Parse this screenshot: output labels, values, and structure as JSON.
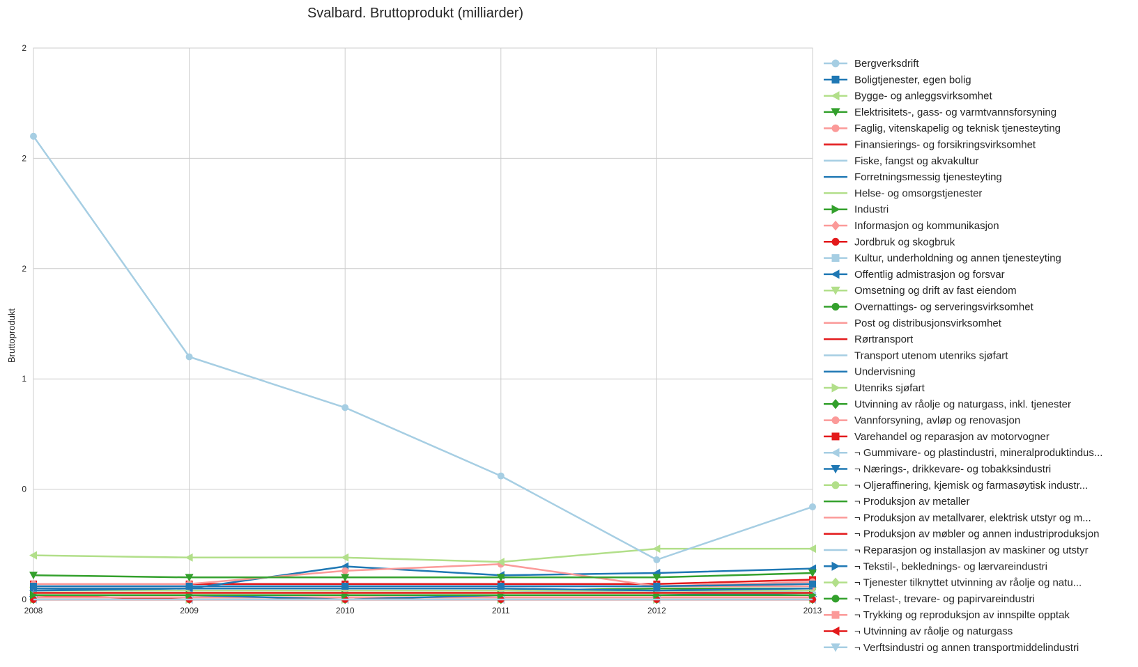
{
  "chart_data": {
    "type": "line",
    "title": "Svalbard. Bruttoprodukt (milliarder)",
    "xlabel": "",
    "ylabel": "Bruttoprodukt",
    "x": [
      "2008",
      "2009",
      "2010",
      "2011",
      "2012",
      "2013"
    ],
    "y_tick_labels": [
      "0",
      "0",
      "1",
      "2",
      "2",
      "2"
    ],
    "ylim": [
      0,
      2.5
    ],
    "grid": true,
    "legend_position": "right",
    "series": [
      {
        "name": "Bergverksdrift",
        "color": "#a6cee3",
        "marker": "circle",
        "values": [
          2.1,
          1.1,
          0.87,
          0.56,
          0.18,
          0.42
        ]
      },
      {
        "name": "Boligtjenester, egen bolig",
        "color": "#1f78b4",
        "marker": "square",
        "values": [
          0.06,
          0.06,
          0.06,
          0.06,
          0.06,
          0.07
        ]
      },
      {
        "name": "Bygge- og anleggsvirksomhet",
        "color": "#b2df8a",
        "marker": "triangle-left",
        "values": [
          0.2,
          0.19,
          0.19,
          0.17,
          0.23,
          0.23
        ]
      },
      {
        "name": "Elektrisitets-, gass- og varmtvannsforsyning",
        "color": "#33a02c",
        "marker": "triangle-down",
        "values": [
          0.11,
          0.1,
          0.1,
          0.1,
          0.1,
          0.12
        ]
      },
      {
        "name": "Faglig, vitenskapelig og teknisk tjenesteyting",
        "color": "#fb9a99",
        "marker": "circle",
        "values": [
          0.07,
          0.07,
          0.13,
          0.16,
          0.06,
          0.08
        ]
      },
      {
        "name": "Finansierings- og forsikringsvirksomhet",
        "color": "#e31a1c",
        "marker": "none",
        "values": [
          0.03,
          0.03,
          0.03,
          0.03,
          0.03,
          0.03
        ]
      },
      {
        "name": "Fiske, fangst og akvakultur",
        "color": "#a6cee3",
        "marker": "none",
        "values": [
          0.0,
          0.0,
          0.0,
          0.0,
          0.0,
          0.0
        ]
      },
      {
        "name": "Forretningsmessig tjenesteyting",
        "color": "#1f78b4",
        "marker": "none",
        "values": [
          0.05,
          0.05,
          0.05,
          0.05,
          0.04,
          0.05
        ]
      },
      {
        "name": "Helse- og omsorgstjenester",
        "color": "#b2df8a",
        "marker": "none",
        "values": [
          0.03,
          0.03,
          0.03,
          0.03,
          0.03,
          0.03
        ]
      },
      {
        "name": "Industri",
        "color": "#33a02c",
        "marker": "triangle-right",
        "values": [
          0.02,
          0.02,
          0.02,
          0.02,
          0.02,
          0.02
        ]
      },
      {
        "name": "Informasjon og kommunikasjon",
        "color": "#fb9a99",
        "marker": "diamond",
        "values": [
          0.06,
          0.06,
          0.06,
          0.06,
          0.06,
          0.06
        ]
      },
      {
        "name": "Jordbruk og skogbruk",
        "color": "#e31a1c",
        "marker": "circle",
        "values": [
          0.0,
          0.0,
          0.0,
          0.0,
          0.0,
          0.0
        ]
      },
      {
        "name": "Kultur, underholdning og annen tjenesteyting",
        "color": "#a6cee3",
        "marker": "square",
        "values": [
          0.02,
          0.02,
          0.02,
          0.02,
          0.02,
          0.02
        ]
      },
      {
        "name": "Offentlig admistrasjon og forsvar",
        "color": "#1f78b4",
        "marker": "triangle-left",
        "values": [
          0.04,
          0.05,
          0.15,
          0.11,
          0.12,
          0.14
        ]
      },
      {
        "name": "Omsetning og drift av fast eiendom",
        "color": "#b2df8a",
        "marker": "triangle-down",
        "values": [
          0.04,
          0.04,
          0.04,
          0.04,
          0.04,
          0.04
        ]
      },
      {
        "name": "Overnattings- og serveringsvirksomhet",
        "color": "#33a02c",
        "marker": "circle",
        "values": [
          0.04,
          0.04,
          0.04,
          0.04,
          0.05,
          0.05
        ]
      },
      {
        "name": "Post og distribusjonsvirksomhet",
        "color": "#fb9a99",
        "marker": "none",
        "values": [
          0.0,
          0.0,
          0.0,
          0.0,
          0.0,
          0.0
        ]
      },
      {
        "name": "Rørtransport",
        "color": "#e31a1c",
        "marker": "none",
        "values": [
          0.0,
          0.0,
          0.0,
          0.0,
          0.0,
          0.0
        ]
      },
      {
        "name": "Transport utenom utenriks sjøfart",
        "color": "#a6cee3",
        "marker": "none",
        "values": [
          0.04,
          0.04,
          0.04,
          0.04,
          0.03,
          0.04
        ]
      },
      {
        "name": "Undervisning",
        "color": "#1f78b4",
        "marker": "none",
        "values": [
          0.02,
          0.02,
          0.0,
          0.02,
          0.02,
          0.03
        ]
      },
      {
        "name": "Utenriks sjøfart",
        "color": "#b2df8a",
        "marker": "triangle-right",
        "values": [
          0.0,
          0.0,
          0.0,
          0.0,
          0.0,
          0.0
        ]
      },
      {
        "name": "Utvinning av råolje og naturgass, inkl. tjenester",
        "color": "#33a02c",
        "marker": "diamond",
        "values": [
          0.0,
          0.0,
          0.0,
          0.0,
          0.0,
          0.0
        ]
      },
      {
        "name": "Vannforsyning, avløp og renovasjon",
        "color": "#fb9a99",
        "marker": "circle",
        "values": [
          0.01,
          0.01,
          0.01,
          0.01,
          0.01,
          0.01
        ]
      },
      {
        "name": "Varehandel og reparasjon av motorvogner",
        "color": "#e31a1c",
        "marker": "square",
        "values": [
          0.07,
          0.07,
          0.07,
          0.07,
          0.07,
          0.09
        ]
      },
      {
        "name": "¬ Gummivare- og plastindustri, mineralproduktindus...",
        "color": "#a6cee3",
        "marker": "triangle-left",
        "values": [
          0.0,
          0.0,
          0.0,
          0.0,
          0.0,
          0.0
        ]
      },
      {
        "name": "¬ Nærings-, drikkevare- og tobakksindustri",
        "color": "#1f78b4",
        "marker": "triangle-down",
        "values": [
          0.0,
          0.0,
          0.0,
          0.0,
          0.0,
          0.0
        ]
      },
      {
        "name": "¬ Oljeraffinering, kjemisk og farmasøytisk industr...",
        "color": "#b2df8a",
        "marker": "circle",
        "values": [
          0.0,
          0.0,
          0.0,
          0.0,
          0.0,
          0.0
        ]
      },
      {
        "name": "¬ Produksjon av metaller",
        "color": "#33a02c",
        "marker": "none",
        "values": [
          0.0,
          0.0,
          0.0,
          0.0,
          0.0,
          0.0
        ]
      },
      {
        "name": "¬ Produksjon av metallvarer, elektrisk utstyr og m...",
        "color": "#fb9a99",
        "marker": "none",
        "values": [
          0.0,
          0.0,
          0.0,
          0.0,
          0.0,
          0.0
        ]
      },
      {
        "name": "¬ Produksjon av møbler og annen industriproduksjon",
        "color": "#e31a1c",
        "marker": "none",
        "values": [
          0.0,
          0.0,
          0.0,
          0.0,
          0.0,
          0.0
        ]
      },
      {
        "name": "¬ Reparasjon og installasjon av maskiner og utstyr",
        "color": "#a6cee3",
        "marker": "none",
        "values": [
          0.0,
          0.0,
          0.0,
          0.0,
          0.0,
          0.0
        ]
      },
      {
        "name": "¬ Tekstil-, beklednings- og lærvareindustri",
        "color": "#1f78b4",
        "marker": "triangle-right",
        "values": [
          0.0,
          0.0,
          0.0,
          0.0,
          0.0,
          0.0
        ]
      },
      {
        "name": "¬ Tjenester tilknyttet utvinning av råolje og natu...",
        "color": "#b2df8a",
        "marker": "diamond",
        "values": [
          0.0,
          0.0,
          0.0,
          0.0,
          0.0,
          0.0
        ]
      },
      {
        "name": "¬ Trelast-, trevare- og papirvareindustri",
        "color": "#33a02c",
        "marker": "circle",
        "values": [
          0.0,
          0.0,
          0.0,
          0.0,
          0.0,
          0.0
        ]
      },
      {
        "name": "¬ Trykking og reproduksjon av innspilte opptak",
        "color": "#fb9a99",
        "marker": "square",
        "values": [
          0.0,
          0.0,
          0.0,
          0.0,
          0.0,
          0.0
        ]
      },
      {
        "name": "¬ Utvinning av råolje og naturgass",
        "color": "#e31a1c",
        "marker": "triangle-left",
        "values": [
          0.02,
          0.0,
          0.0,
          0.0,
          0.0,
          0.0
        ]
      },
      {
        "name": "¬ Verftsindustri og annen transportmiddelindustri",
        "color": "#a6cee3",
        "marker": "triangle-down",
        "values": [
          0.0,
          0.0,
          0.0,
          0.0,
          0.0,
          0.0
        ]
      }
    ]
  }
}
